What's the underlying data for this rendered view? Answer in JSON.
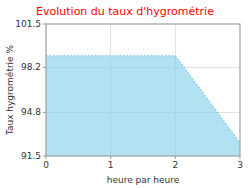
{
  "chart_data": {
    "type": "area",
    "title": "Evolution du taux d'hygrométrie",
    "xlabel": "heure par heure",
    "ylabel": "Taux hygrométrie %",
    "x": [
      0,
      2,
      3
    ],
    "values": [
      99.1,
      99.1,
      92.5
    ],
    "color": "#7ecfe8",
    "line_style": "dotted",
    "xlim": [
      0,
      3
    ],
    "ylim": [
      91.5,
      101.5
    ],
    "xticks": [
      0,
      1,
      2,
      3
    ],
    "yticks": [
      91.5,
      94.8,
      98.2,
      101.5
    ],
    "grid": true
  }
}
